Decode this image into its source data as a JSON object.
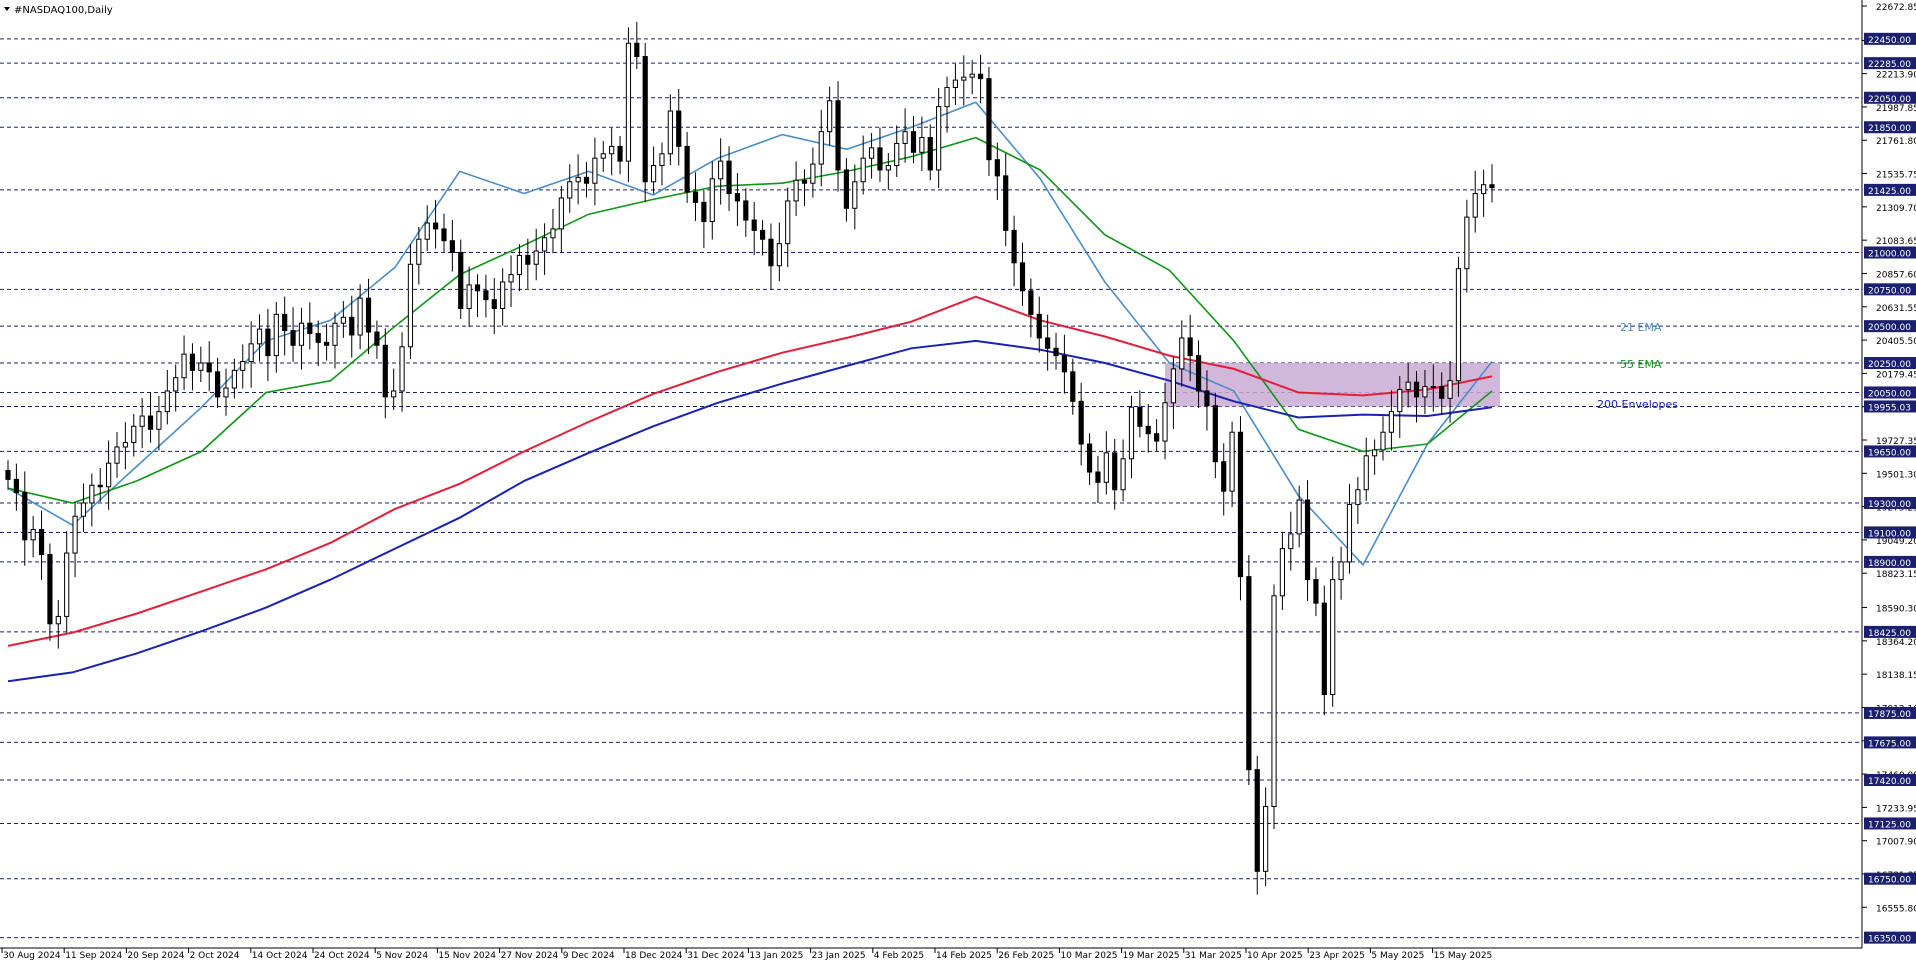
{
  "chart_data": {
    "type": "candlestick",
    "title": "#NASDAQ100,Daily",
    "ylim": [
      16300,
      22700
    ],
    "price_axis_labels": [
      "22672.85",
      "22438.90",
      "22213.90",
      "21987.85",
      "21761.80",
      "21535.75",
      "21309.70",
      "21083.65",
      "20857.60",
      "20631.55",
      "20405.50",
      "20179.45",
      "19953.40",
      "19727.35",
      "19501.30",
      "19275.25",
      "19049.20",
      "18823.15",
      "18590.30",
      "18364.20",
      "18138.15",
      "17912.10",
      "17686.05",
      "17460.00",
      "17233.95",
      "17007.90",
      "16781.85",
      "16555.80"
    ],
    "levels": [
      22450,
      22285,
      22050,
      21850,
      21425,
      21000,
      20750,
      20500,
      20250,
      20050,
      19955,
      19650,
      19300,
      19100,
      18900,
      18425,
      17875,
      17675,
      17420,
      17125,
      16750,
      16350
    ],
    "level_labels": [
      "22450.00",
      "22285.00",
      "22050.00",
      "21850.00",
      "21425.00",
      "21000.00",
      "20750.00",
      "20500.00",
      "20250.00",
      "20050.00",
      "19955.03",
      "19650.00",
      "19300.00",
      "19100.00",
      "18900.00",
      "18425.00",
      "17875.00",
      "17675.00",
      "17420.00",
      "17125.00",
      "16750.00",
      "16350.00"
    ],
    "x_labels": [
      "30 Aug 2024",
      "11 Sep 2024",
      "20 Sep 2024",
      "2 Oct 2024",
      "14 Oct 2024",
      "24 Oct 2024",
      "5 Nov 2024",
      "15 Nov 2024",
      "27 Nov 2024",
      "9 Dec 2024",
      "18 Dec 2024",
      "31 Dec 2024",
      "13 Jan 2025",
      "23 Jan 2025",
      "4 Feb 2025",
      "14 Feb 2025",
      "26 Feb 2025",
      "10 Mar 2025",
      "19 Mar 2025",
      "31 Mar 2025",
      "10 Apr 2025",
      "23 Apr 2025",
      "5 May 2025",
      "15 May 2025"
    ],
    "candles": [
      19460,
      19370,
      19050,
      19120,
      18950,
      18480,
      18530,
      18960,
      19210,
      19300,
      19420,
      19410,
      19570,
      19680,
      19710,
      19820,
      19890,
      19800,
      19920,
      20060,
      20150,
      20310,
      20200,
      20250,
      20190,
      20020,
      20080,
      20200,
      20260,
      20380,
      20480,
      20300,
      20580,
      20470,
      20370,
      20520,
      20450,
      20390,
      20370,
      20520,
      20560,
      20440,
      20690,
      20460,
      20370,
      20020,
      20060,
      20360,
      20920,
      21090,
      21200,
      21160,
      21080,
      21000,
      20620,
      20780,
      20740,
      20680,
      20620,
      20800,
      20850,
      20980,
      20920,
      21010,
      21100,
      21160,
      21370,
      21480,
      21510,
      21470,
      21640,
      21670,
      21720,
      21620,
      22420,
      22330,
      21480,
      21590,
      21670,
      21960,
      21720,
      21410,
      21340,
      21210,
      21500,
      21620,
      21400,
      21350,
      21220,
      21150,
      21090,
      20910,
      21060,
      21350,
      21490,
      21470,
      21600,
      21820,
      22030,
      21560,
      21300,
      21480,
      21640,
      21710,
      21560,
      21590,
      21740,
      21820,
      21680,
      21780,
      21560,
      21990,
      22120,
      22170,
      22190,
      22210,
      22180,
      21630,
      21520,
      21150,
      20930,
      20740,
      20580,
      20420,
      20350,
      20300,
      20190,
      19990,
      19700,
      19510,
      19440,
      19640,
      19390,
      19600,
      19950,
      19820,
      19770,
      19720,
      19980,
      20210,
      20420,
      20300,
      20060,
      19960,
      19580,
      19380,
      19780,
      18800,
      17490,
      16800,
      17240,
      18670,
      18990,
      19090,
      19320,
      18780,
      18620,
      18000,
      18780,
      18900,
      19290,
      19390,
      19620,
      19660,
      19780,
      19920,
      20070,
      20120,
      20020,
      20090,
      20090,
      20010,
      20130,
      20890,
      21240,
      21400,
      21460,
      21440
    ],
    "series": [
      {
        "name": "21 EMA",
        "color": "#4b8ec8",
        "values": [
          19400,
          19150,
          19550,
          19950,
          20400,
          20540,
          20900,
          21550,
          21400,
          21550,
          21390,
          21640,
          21800,
          21700,
          21850,
          22020,
          21500,
          20800,
          20250,
          20060,
          19350,
          18880,
          19700,
          20260
        ]
      },
      {
        "name": "55 EMA",
        "color": "#109618",
        "values": [
          19400,
          19300,
          19450,
          19650,
          20050,
          20130,
          20500,
          20850,
          21050,
          21260,
          21360,
          21450,
          21470,
          21550,
          21650,
          21780,
          21560,
          21120,
          20880,
          20400,
          19800,
          19650,
          19700,
          20060
        ]
      },
      {
        "name": "200 Envelopes",
        "color": "#e0203a",
        "values": [
          18330,
          18420,
          18550,
          18700,
          18850,
          19030,
          19260,
          19430,
          19650,
          19850,
          20040,
          20190,
          20320,
          20420,
          20530,
          20700,
          20540,
          20430,
          20300,
          20210,
          20050,
          20030,
          20070,
          20160
        ]
      },
      {
        "name": "200 Envelopes",
        "color": "#1a22b0",
        "values": [
          18090,
          18150,
          18280,
          18430,
          18590,
          18780,
          18990,
          19200,
          19450,
          19640,
          19820,
          19980,
          20110,
          20230,
          20350,
          20400,
          20340,
          20250,
          20130,
          19990,
          19880,
          19900,
          19890,
          19950
        ]
      }
    ],
    "labels": {
      "ema21": "21 EMA",
      "ema55": "55 EMA",
      "envelopes": "200 Envelopes"
    },
    "zone": {
      "from": 19955,
      "to": 20250,
      "color": "#c9abd3"
    },
    "grid": true
  }
}
